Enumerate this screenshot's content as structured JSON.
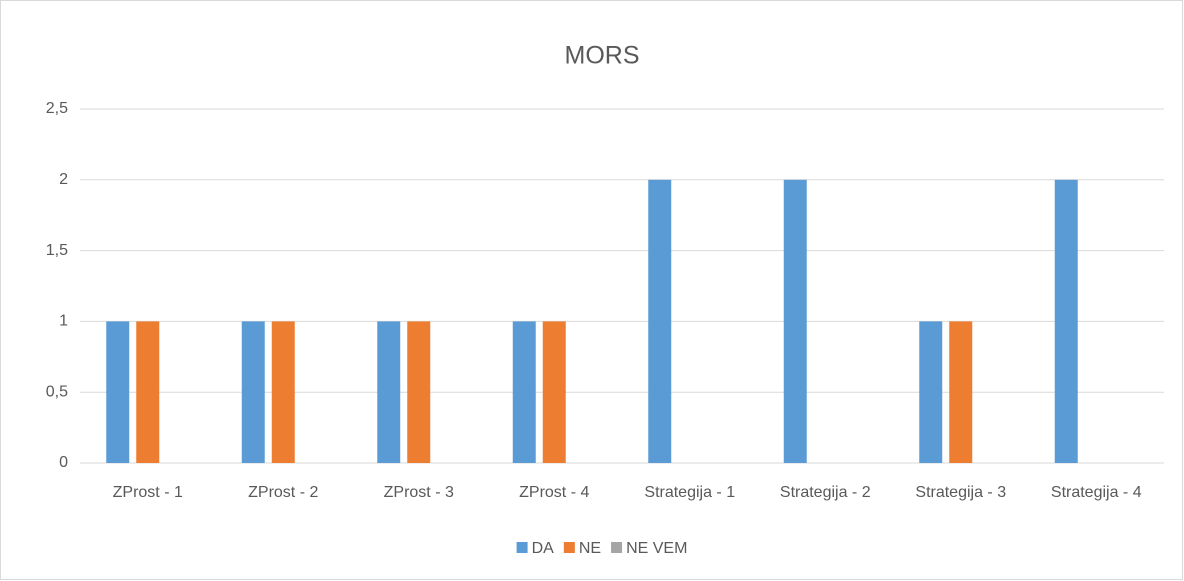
{
  "chart_data": {
    "type": "bar",
    "title": "MORS",
    "categories": [
      "ZProst - 1",
      "ZProst - 2",
      "ZProst - 3",
      "ZProst - 4",
      "Strategija - 1",
      "Strategija - 2",
      "Strategija - 3",
      "Strategija - 4"
    ],
    "series": [
      {
        "name": "DA",
        "color": "#5b9bd5",
        "values": [
          1,
          1,
          1,
          1,
          2,
          2,
          1,
          2
        ]
      },
      {
        "name": "NE",
        "color": "#ed7d31",
        "values": [
          1,
          1,
          1,
          1,
          0,
          0,
          1,
          0
        ]
      },
      {
        "name": "NE VEM",
        "color": "#a5a5a5",
        "values": [
          0,
          0,
          0,
          0,
          0,
          0,
          0,
          0
        ]
      }
    ],
    "ylim": [
      0,
      2.5
    ],
    "yticks": [
      0,
      {
        "value": 0.5,
        "label": "0,5"
      },
      1,
      {
        "value": 1.5,
        "label": "1,5"
      },
      2,
      {
        "value": 2.5,
        "label": "2,5"
      }
    ],
    "grid": true,
    "legend": "bottom"
  }
}
